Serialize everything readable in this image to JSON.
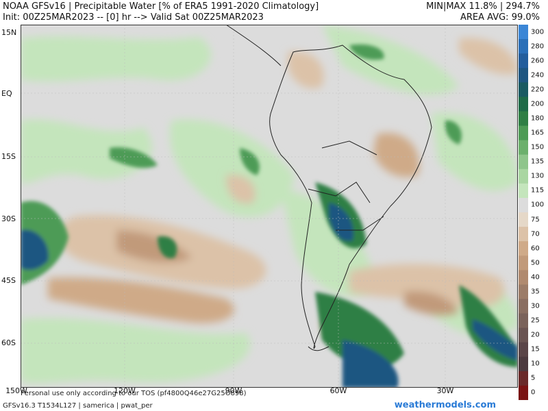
{
  "header": {
    "line1": "NOAA GFSv16 |  Precipitable Water [% of ERA5 1991-2020 Climatology]",
    "line2": "Init: 00Z25MAR2023 -- [0] hr --> Valid Sat 00Z25MAR2023",
    "minmax": "MIN|MAX 11.8% | 294.7%",
    "area_avg": "AREA AVG: 99.0%"
  },
  "lat_labels": [
    "15N",
    "EQ",
    "15S",
    "30S",
    "45S",
    "60S"
  ],
  "lon_labels": [
    "150W",
    "120W",
    "90W",
    "60W",
    "30W"
  ],
  "colorbar": {
    "labels": [
      "300",
      "280",
      "260",
      "240",
      "220",
      "200",
      "180",
      "165",
      "150",
      "135",
      "130",
      "115",
      "100",
      "75",
      "70",
      "60",
      "50",
      "40",
      "35",
      "30",
      "25",
      "20",
      "15",
      "10",
      "5",
      "0"
    ],
    "colors": [
      "#3b86d6",
      "#2a6fb8",
      "#235d9c",
      "#1f5681",
      "#1a5a62",
      "#1f6b48",
      "#2f7f45",
      "#4e9b56",
      "#6cb06c",
      "#8fc58b",
      "#aad6a2",
      "#c4e5bc",
      "#dcdcdc",
      "#e5d8c8",
      "#dcc2a8",
      "#cfaa88",
      "#c19a7a",
      "#b08a6f",
      "#9c7c68",
      "#8a6e61",
      "#7a625a",
      "#6a5452",
      "#5a4548",
      "#4c3a3f",
      "#6a2a2a",
      "#7a1414"
    ]
  },
  "footer": {
    "tos": "Personal use only according to our TOS (pf4800Q46e27G25O898)",
    "info": "GFSv16.3 T1534L127 | samerica | pwat_per",
    "brand": "weathermodels.com"
  }
}
